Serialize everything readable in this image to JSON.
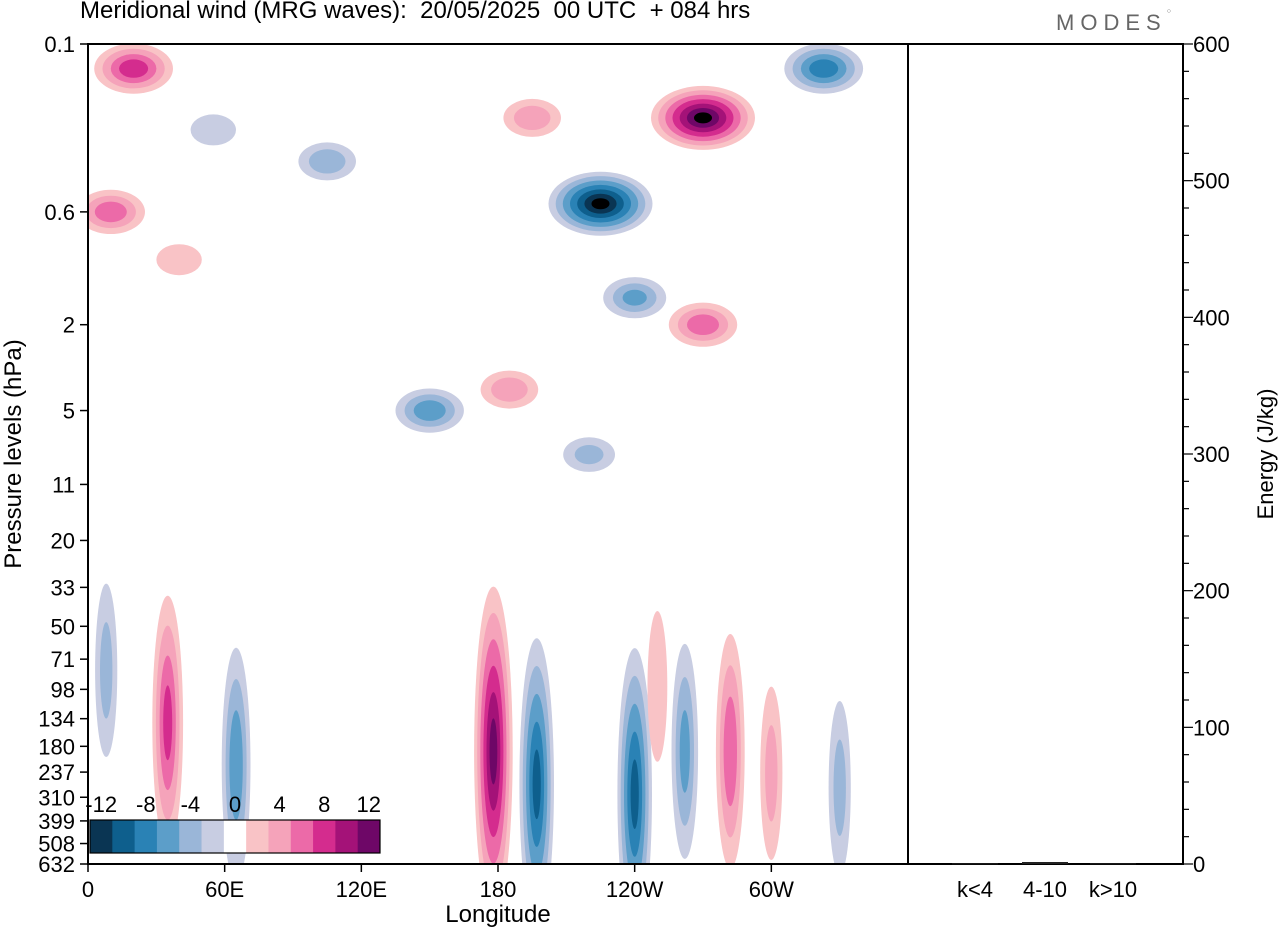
{
  "title": "Meridional wind (MRG waves):  20/05/2025  00 UTC  + 084 hrs",
  "logo": "MODES",
  "chart_data": [
    {
      "type": "heatmap",
      "title": "Meridional wind (MRG waves):  20/05/2025  00 UTC  + 084 hrs",
      "xlabel": "Longitude",
      "ylabel": "Pressure levels (hPa)",
      "x_ticks": [
        "0",
        "60E",
        "120E",
        "180",
        "120W",
        "60W"
      ],
      "x_tick_values": [
        0,
        60,
        120,
        180,
        240,
        300
      ],
      "xlim": [
        0,
        360
      ],
      "y_ticks": [
        "0.1",
        "0.6",
        "2",
        "5",
        "11",
        "20",
        "33",
        "50",
        "71",
        "98",
        "134",
        "180",
        "237",
        "310",
        "399",
        "508",
        "632"
      ],
      "y_scale": "log",
      "ylim": [
        0.1,
        632
      ],
      "y_inverted": true,
      "colorbar": {
        "placement": "bottom-left",
        "labels": [
          "-12",
          "-8",
          "-4",
          "0",
          "4",
          "8",
          "12"
        ],
        "levels": [
          -14,
          -12,
          -10,
          -8,
          -6,
          -4,
          -2,
          2,
          4,
          6,
          8,
          10,
          12,
          14
        ],
        "colors": [
          "#0a3553",
          "#0e5f8d",
          "#2a82b5",
          "#5c9ec9",
          "#9ab6d8",
          "#c8cde2",
          "#ffffff",
          "#f9c3c6",
          "#f5a3ba",
          "#ec6aa8",
          "#d42c8e",
          "#a41278",
          "#6e0767"
        ]
      },
      "features": [
        {
          "lon": 20,
          "p": 0.13,
          "value": 9
        },
        {
          "lon": 10,
          "p": 0.6,
          "value": 7
        },
        {
          "lon": 40,
          "p": 1.0,
          "value": 3
        },
        {
          "lon": 55,
          "p": 0.25,
          "value": -3
        },
        {
          "lon": 105,
          "p": 0.35,
          "value": -5
        },
        {
          "lon": 150,
          "p": 5,
          "value": -7
        },
        {
          "lon": 185,
          "p": 4,
          "value": 5
        },
        {
          "lon": 195,
          "p": 0.22,
          "value": 5
        },
        {
          "lon": 225,
          "p": 0.55,
          "value": -14
        },
        {
          "lon": 240,
          "p": 1.5,
          "value": -6
        },
        {
          "lon": 270,
          "p": 0.22,
          "value": 14
        },
        {
          "lon": 270,
          "p": 2,
          "value": 7
        },
        {
          "lon": 323,
          "p": 0.13,
          "value": -9
        },
        {
          "lon": 35,
          "p": 140,
          "value": 8
        },
        {
          "lon": 65,
          "p": 220,
          "value": -7
        },
        {
          "lon": 8,
          "p": 80,
          "value": -4
        },
        {
          "lon": 178,
          "p": 190,
          "value": 12
        },
        {
          "lon": 197,
          "p": 270,
          "value": -10
        },
        {
          "lon": 240,
          "p": 300,
          "value": -10
        },
        {
          "lon": 262,
          "p": 190,
          "value": -6
        },
        {
          "lon": 282,
          "p": 190,
          "value": 7
        },
        {
          "lon": 300,
          "p": 240,
          "value": 4
        },
        {
          "lon": 330,
          "p": 280,
          "value": -4
        },
        {
          "lon": 250,
          "p": 95,
          "value": 3
        },
        {
          "lon": 220,
          "p": 8,
          "value": -4
        }
      ]
    },
    {
      "type": "bar",
      "categories": [
        "k<4",
        "4-10",
        "k>10"
      ],
      "values": [
        0.5,
        1.5,
        0.5
      ],
      "ylabel": "Energy (J/kg)",
      "ylim": [
        0,
        600
      ],
      "y_ticks": [
        "0",
        "100",
        "200",
        "300",
        "400",
        "500",
        "600"
      ],
      "y_tick_values": [
        0,
        100,
        200,
        300,
        400,
        500,
        600
      ],
      "y_axis_side": "right"
    }
  ]
}
